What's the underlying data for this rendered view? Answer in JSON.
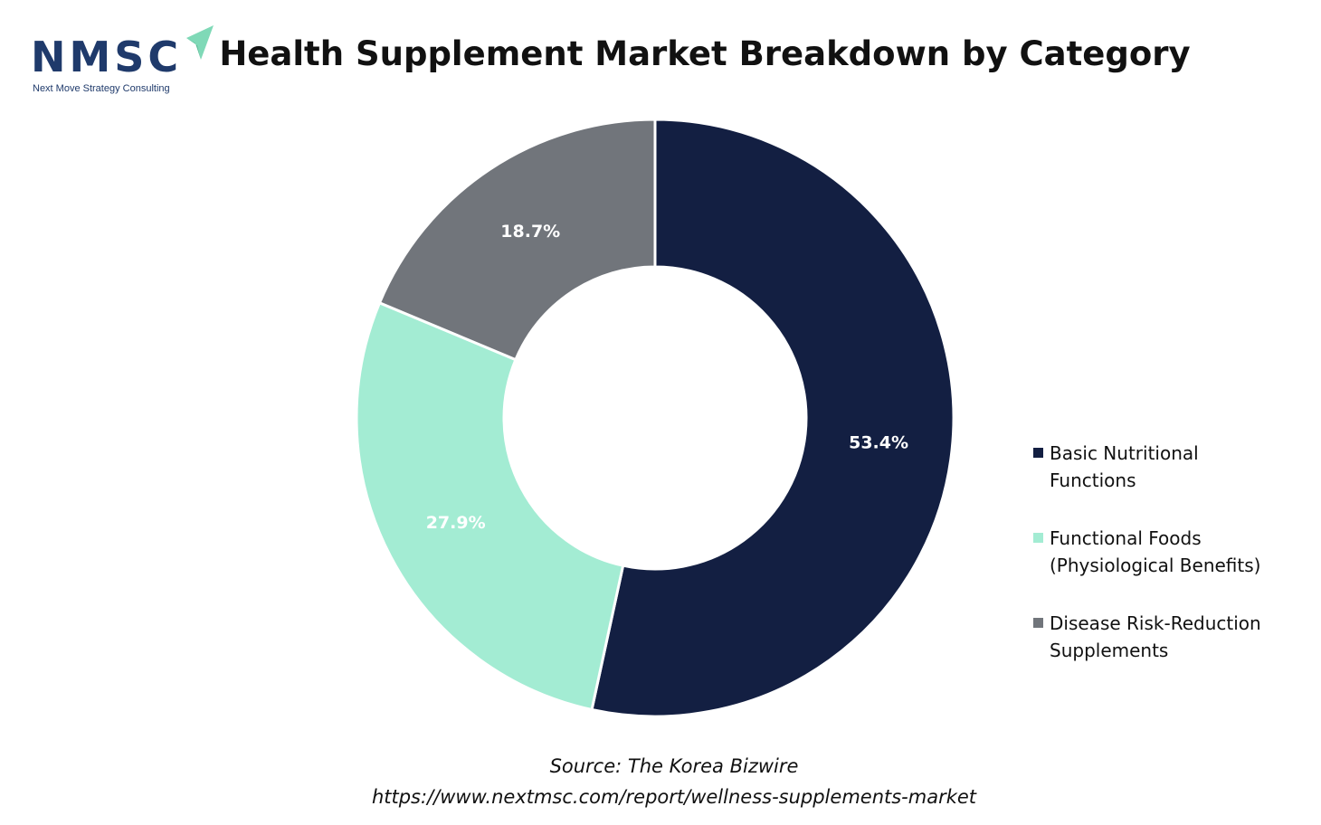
{
  "logo": {
    "word": "NMSC",
    "tagline": "Next Move Strategy Consulting",
    "icon": "paper-plane-icon",
    "colors": {
      "text": "#1f3a6b",
      "plane": "#7fd9b7"
    }
  },
  "title": "Health Supplement Market Breakdown by Category",
  "chart_data": {
    "type": "pie",
    "variant": "donut",
    "title": "Health Supplement Market Breakdown by Category",
    "start_angle_deg": 0,
    "direction": "clockwise",
    "legend_position": "right",
    "series": [
      {
        "name": "Basic Nutritional Functions",
        "legend_lines": [
          "Basic Nutritional",
          "Functions"
        ],
        "value": 53.4,
        "label": "53.4%",
        "color": "#131f42"
      },
      {
        "name": "Functional Foods (Physiological Benefits)",
        "legend_lines": [
          "Functional Foods",
          "(Physiological Benefits)"
        ],
        "value": 27.9,
        "label": "27.9%",
        "color": "#a3ecd3"
      },
      {
        "name": "Disease Risk-Reduction Supplements",
        "legend_lines": [
          "Disease Risk-Reduction",
          "Supplements"
        ],
        "value": 18.7,
        "label": "18.7%",
        "color": "#71757b"
      }
    ]
  },
  "source": {
    "line1": "Source: The Korea Bizwire",
    "line2": "https://www.nextmsc.com/report/wellness-supplements-market"
  }
}
